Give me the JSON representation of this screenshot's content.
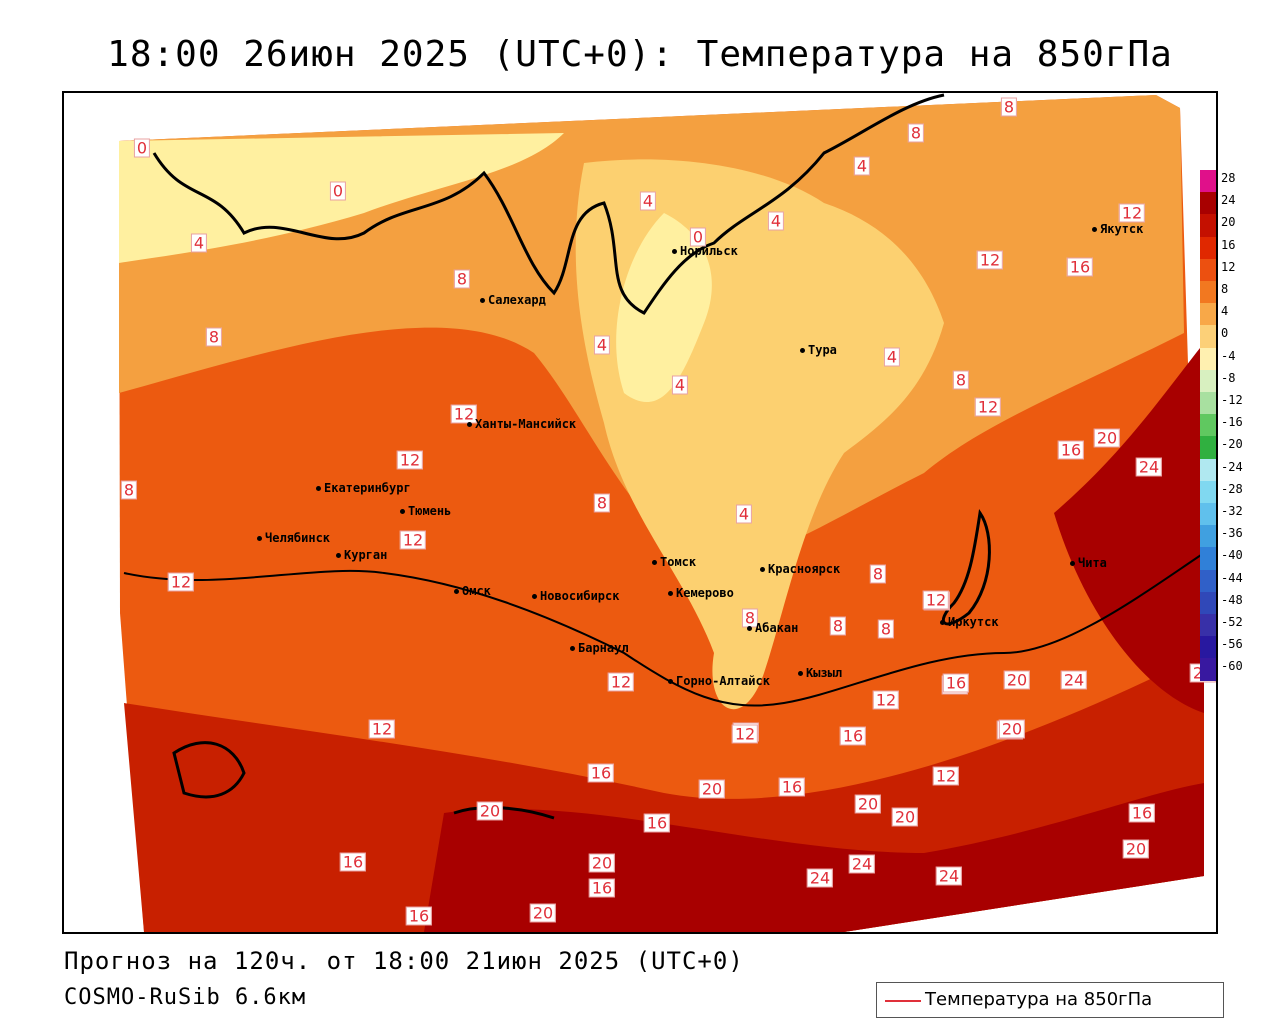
{
  "title": "18:00 26июн 2025 (UTC+0): Температура на 850гПа",
  "footer": {
    "forecast": "Прогноз на 120ч. от 18:00 21июн 2025 (UTC+0)",
    "model": "COSMO-RuSib 6.6км"
  },
  "legend": {
    "label": "Температура на 850гПа",
    "color": "#e0303a"
  },
  "colorbar": {
    "labels": [
      "28",
      "24",
      "20",
      "16",
      "12",
      "8",
      "4",
      "0",
      "-4",
      "-8",
      "-12",
      "-16",
      "-20",
      "-24",
      "-28",
      "-32",
      "-36",
      "-40",
      "-44",
      "-48",
      "-52",
      "-56",
      "-60"
    ],
    "colors": [
      "#e0108a",
      "#a80000",
      "#c41000",
      "#e02800",
      "#ec5010",
      "#f27820",
      "#f8a848",
      "#fcd078",
      "#fff0b0",
      "#d8f0c0",
      "#a8e0a0",
      "#60c860",
      "#30b040",
      "#b0e8f0",
      "#80d8f0",
      "#60c0ec",
      "#40a0e0",
      "#3080d8",
      "#3060c8",
      "#3048b8",
      "#3830a8",
      "#2818a0",
      "#3818a0"
    ]
  },
  "cities": [
    {
      "name": "Норильск"
    },
    {
      "name": "Салехард"
    },
    {
      "name": "Тура"
    },
    {
      "name": "Якутск"
    },
    {
      "name": "Ханты-Мансийск"
    },
    {
      "name": "Екатеринбург"
    },
    {
      "name": "Тюмень"
    },
    {
      "name": "Челябинск"
    },
    {
      "name": "Курган"
    },
    {
      "name": "Омск"
    },
    {
      "name": "Новосибирск"
    },
    {
      "name": "Томск"
    },
    {
      "name": "Кемерово"
    },
    {
      "name": "Красноярск"
    },
    {
      "name": "Барнаул"
    },
    {
      "name": "Абакан"
    },
    {
      "name": "Горно-Алтайск"
    },
    {
      "name": "Кызыл"
    },
    {
      "name": "Иркутск"
    },
    {
      "name": "Чита"
    }
  ],
  "isolabels": [
    "0",
    "0",
    "4",
    "4",
    "0",
    "4",
    "8",
    "8",
    "8",
    "8",
    "12",
    "12",
    "12",
    "12",
    "12",
    "4",
    "4",
    "4",
    "4",
    "8",
    "8",
    "12",
    "16",
    "12",
    "12",
    "16",
    "20",
    "8",
    "20",
    "24",
    "16",
    "12",
    "12",
    "16",
    "12",
    "20",
    "24",
    "16",
    "12",
    "16",
    "20",
    "20",
    "24",
    "12",
    "16",
    "16",
    "20",
    "20",
    "16",
    "20",
    "16",
    "20",
    "24",
    "24",
    "24",
    "20",
    "16",
    "16",
    "20",
    "8",
    "8",
    "8",
    "12",
    "12",
    "4",
    "8"
  ]
}
